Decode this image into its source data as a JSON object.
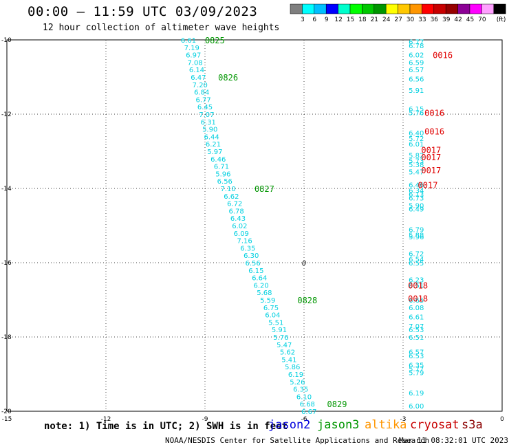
{
  "header": {
    "title": "00:00 — 11:59 UTC 03/09/2023",
    "subtitle": "12 hour collection of altimeter wave heights"
  },
  "legend": {
    "colors": [
      "#7f7f7f",
      "#00ffff",
      "#00bfff",
      "#0000ff",
      "#00ffcc",
      "#00ff00",
      "#00c800",
      "#009600",
      "#ffff00",
      "#ffc800",
      "#ff9600",
      "#ff0000",
      "#c80000",
      "#960000",
      "#8c0096",
      "#ff00ff",
      "#ffa0ff",
      "#000000"
    ],
    "labels": [
      "3",
      "6",
      "9",
      "12",
      "15",
      "18",
      "21",
      "24",
      "27",
      "30",
      "33",
      "36",
      "39",
      "42",
      "45",
      "70"
    ],
    "unit": "(ft)"
  },
  "footer": {
    "note": "note:  1) Time is in UTC;  2) SWH is in feet",
    "missions": [
      {
        "name": "jason2",
        "color": "#0000dd"
      },
      {
        "name": "jason3",
        "color": "#009600"
      },
      {
        "name": "altika",
        "color": "#ff9600"
      },
      {
        "name": "cryosat",
        "color": "#c80000"
      },
      {
        "name": "s3a",
        "color": "#8b0000"
      }
    ],
    "credit": "NOAA/NESDIS Center for Satellite Applications and Research",
    "date": "Mar 11 08:32:01 UTC 2023"
  },
  "chart_data": {
    "type": "scatter",
    "xlim": [
      -15,
      0
    ],
    "ylim": [
      -20,
      -10
    ],
    "x_ticks": [
      -15,
      -12,
      -9,
      -6,
      -3,
      0
    ],
    "y_ticks": [
      -10,
      -12,
      -14,
      -16,
      -18,
      -20
    ],
    "grid": true,
    "series": [
      {
        "name": "jason3",
        "color": "#00d0e0",
        "points": [
          [
            -9.5,
            -10.0,
            "6.61"
          ],
          [
            -9.4,
            -10.2,
            "7.19"
          ],
          [
            -9.35,
            -10.4,
            "6.97"
          ],
          [
            -9.3,
            -10.6,
            "7.08"
          ],
          [
            -9.25,
            -10.8,
            "6.14"
          ],
          [
            -9.2,
            -11.0,
            "6.47"
          ],
          [
            -9.15,
            -11.2,
            "7.20"
          ],
          [
            -9.1,
            -11.4,
            "6.84"
          ],
          [
            -9.05,
            -11.6,
            "6.77"
          ],
          [
            -9.0,
            -11.8,
            "6.45"
          ],
          [
            -8.95,
            -12.0,
            "7.07"
          ],
          [
            -8.9,
            -12.2,
            "6.31"
          ],
          [
            -8.85,
            -12.4,
            "5.90"
          ],
          [
            -8.8,
            -12.6,
            "6.44"
          ],
          [
            -8.75,
            -12.8,
            "6.21"
          ],
          [
            -8.7,
            -13.0,
            "5.97"
          ],
          [
            -8.6,
            -13.2,
            "6.46"
          ],
          [
            -8.5,
            -13.4,
            "6.71"
          ],
          [
            -8.45,
            -13.6,
            "5.96"
          ],
          [
            -8.4,
            -13.8,
            "6.56"
          ],
          [
            -8.3,
            -14.0,
            "7.10"
          ],
          [
            -8.2,
            -14.2,
            "6.62"
          ],
          [
            -8.1,
            -14.4,
            "6.72"
          ],
          [
            -8.05,
            -14.6,
            "6.78"
          ],
          [
            -8.0,
            -14.8,
            "6.43"
          ],
          [
            -7.95,
            -15.0,
            "6.02"
          ],
          [
            -7.9,
            -15.2,
            "6.09"
          ],
          [
            -7.8,
            -15.4,
            "7.16"
          ],
          [
            -7.7,
            -15.6,
            "6.35"
          ],
          [
            -7.6,
            -15.8,
            "6.30"
          ],
          [
            -7.55,
            -16.0,
            "6.56"
          ],
          [
            -7.45,
            -16.2,
            "6.15"
          ],
          [
            -7.35,
            -16.4,
            "6.64"
          ],
          [
            -7.3,
            -16.6,
            "6.20"
          ],
          [
            -7.2,
            -16.8,
            "5.68"
          ],
          [
            -7.1,
            -17.0,
            "5.59"
          ],
          [
            -7.0,
            -17.2,
            "6.75"
          ],
          [
            -6.95,
            -17.4,
            "6.04"
          ],
          [
            -6.85,
            -17.6,
            "5.51"
          ],
          [
            -6.75,
            -17.8,
            "5.91"
          ],
          [
            -6.7,
            -18.0,
            "5.76"
          ],
          [
            -6.6,
            -18.2,
            "5.47"
          ],
          [
            -6.5,
            -18.4,
            "5.62"
          ],
          [
            -6.45,
            -18.6,
            "5.41"
          ],
          [
            -6.35,
            -18.8,
            "5.86"
          ],
          [
            -6.25,
            -19.0,
            "6.19"
          ],
          [
            -6.2,
            -19.2,
            "5.26"
          ],
          [
            -6.1,
            -19.4,
            "6.35"
          ],
          [
            -6.0,
            -19.6,
            "6.10"
          ],
          [
            -5.9,
            -19.8,
            "6.68"
          ],
          [
            -5.85,
            -20.0,
            "6.67"
          ]
        ]
      },
      {
        "name": "s3a",
        "color": "#00d0e0",
        "points": [
          [
            -2.6,
            -10.05,
            "6.77"
          ],
          [
            -2.6,
            -10.15,
            "6.78"
          ],
          [
            -2.6,
            -10.4,
            "6.02"
          ],
          [
            -2.6,
            -10.6,
            "6.59"
          ],
          [
            -2.6,
            -10.8,
            "6.57"
          ],
          [
            -2.6,
            -11.05,
            "6.56"
          ],
          [
            -2.6,
            -11.35,
            "5.91"
          ],
          [
            -2.6,
            -11.85,
            "6.15"
          ],
          [
            -2.6,
            -11.95,
            "5.76"
          ],
          [
            -2.6,
            -12.5,
            "6.40"
          ],
          [
            -2.6,
            -12.65,
            "5.72"
          ],
          [
            -2.6,
            -12.8,
            "6.01"
          ],
          [
            -2.6,
            -13.1,
            "5.82"
          ],
          [
            -2.6,
            -13.25,
            "5.73"
          ],
          [
            -2.6,
            -13.35,
            "5.38"
          ],
          [
            -2.6,
            -13.55,
            "5.47"
          ],
          [
            -2.6,
            -13.9,
            "6.46"
          ],
          [
            -2.6,
            -14.05,
            "6.34"
          ],
          [
            -2.6,
            -14.15,
            "6.13"
          ],
          [
            -2.6,
            -14.25,
            "6.73"
          ],
          [
            -2.6,
            -14.45,
            "5.90"
          ],
          [
            -2.6,
            -14.55,
            "6.49"
          ],
          [
            -2.6,
            -15.1,
            "6.79"
          ],
          [
            -2.6,
            -15.25,
            "5.88"
          ],
          [
            -2.6,
            -15.3,
            "5.96"
          ],
          [
            -2.6,
            -15.75,
            "6.72"
          ],
          [
            -2.6,
            -15.9,
            "6.54"
          ],
          [
            -2.6,
            -16.0,
            "6.55"
          ],
          [
            -2.6,
            -16.45,
            "6.23"
          ],
          [
            -2.6,
            -16.6,
            "6.51"
          ],
          [
            -2.6,
            -17.0,
            "6.65"
          ],
          [
            -2.6,
            -17.2,
            "6.08"
          ],
          [
            -2.6,
            -17.45,
            "6.61"
          ],
          [
            -2.6,
            -17.7,
            "7.07"
          ],
          [
            -2.6,
            -17.8,
            "6.53"
          ],
          [
            -2.6,
            -18.0,
            "6.51"
          ],
          [
            -2.6,
            -18.4,
            "6.57"
          ],
          [
            -2.6,
            -18.5,
            "6.53"
          ],
          [
            -2.6,
            -18.75,
            "6.35"
          ],
          [
            -2.6,
            -18.85,
            "5.77"
          ],
          [
            -2.6,
            -18.95,
            "5.79"
          ],
          [
            -2.6,
            -19.5,
            "6.19"
          ],
          [
            -2.6,
            -19.85,
            "6.00"
          ]
        ]
      }
    ],
    "time_labels": [
      {
        "x": -8.7,
        "y": -10.0,
        "text": "0825",
        "color": "#009600"
      },
      {
        "x": -8.3,
        "y": -11.0,
        "text": "0826",
        "color": "#009600"
      },
      {
        "x": -7.2,
        "y": -14.0,
        "text": "0827",
        "color": "#009600"
      },
      {
        "x": -5.9,
        "y": -17.0,
        "text": "0828",
        "color": "#009600"
      },
      {
        "x": -5.0,
        "y": -19.8,
        "text": "0829",
        "color": "#009600"
      },
      {
        "x": -1.8,
        "y": -10.4,
        "text": "0016",
        "color": "#e00000"
      },
      {
        "x": -2.05,
        "y": -11.95,
        "text": "0016",
        "color": "#e00000"
      },
      {
        "x": -2.05,
        "y": -12.45,
        "text": "0016",
        "color": "#e00000"
      },
      {
        "x": -2.15,
        "y": -12.95,
        "text": "0017",
        "color": "#e00000"
      },
      {
        "x": -2.15,
        "y": -13.15,
        "text": "0017",
        "color": "#e00000"
      },
      {
        "x": -2.15,
        "y": -13.5,
        "text": "0017",
        "color": "#e00000"
      },
      {
        "x": -2.25,
        "y": -13.9,
        "text": "0017",
        "color": "#e00000"
      },
      {
        "x": -2.55,
        "y": -16.6,
        "text": "0018",
        "color": "#e00000"
      },
      {
        "x": -2.55,
        "y": -16.95,
        "text": "0018",
        "color": "#e00000"
      }
    ],
    "marker": {
      "x": -6.0,
      "y": -16.0,
      "text": "0"
    }
  }
}
